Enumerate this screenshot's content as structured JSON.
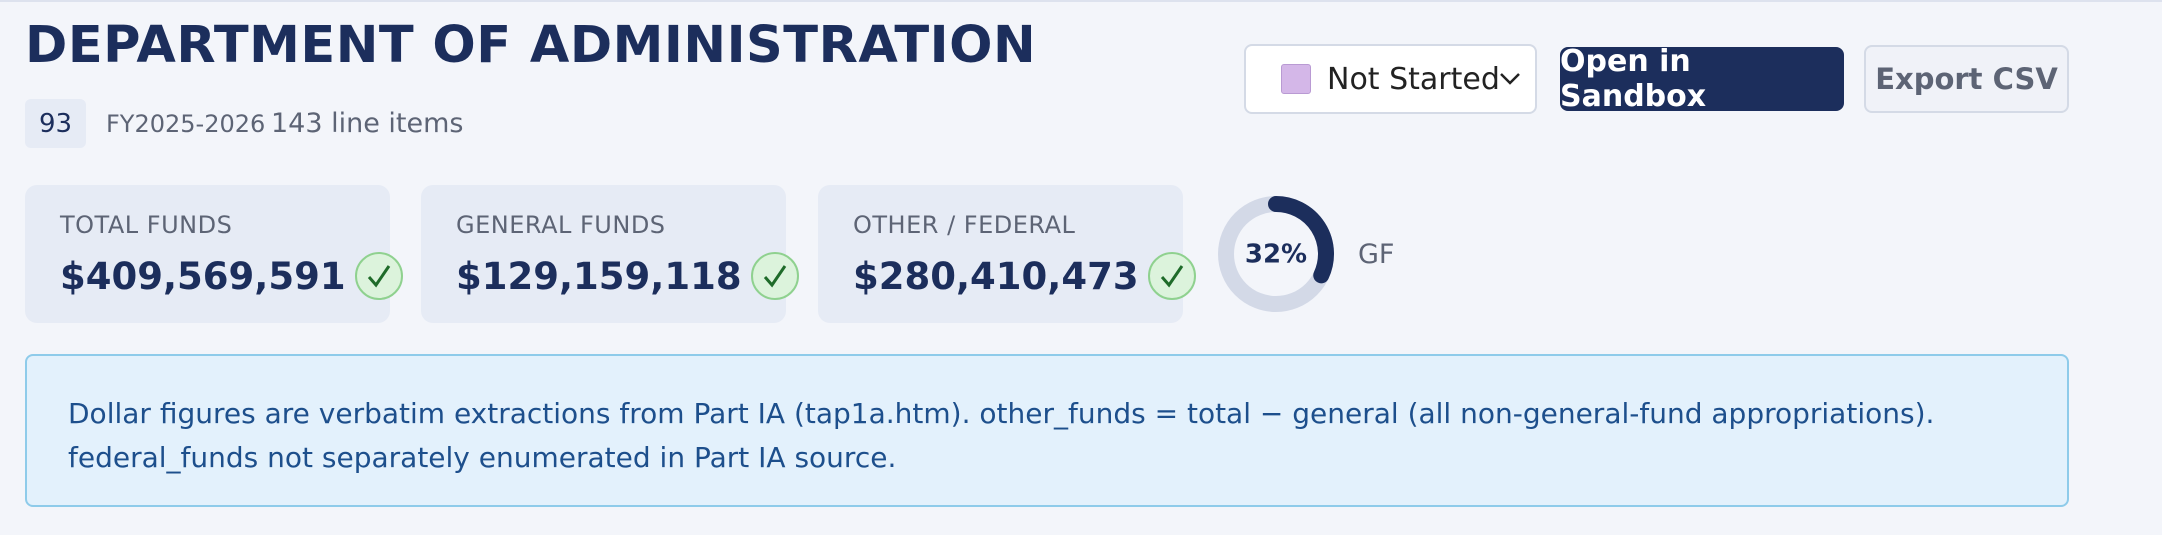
{
  "header": {
    "title": "DEPARTMENT OF ADMINISTRATION",
    "badge": "93",
    "fiscal_year": "FY2025-2026",
    "line_items": "143 line items"
  },
  "controls": {
    "status": "Not Started",
    "primary_button": "Open in Sandbox",
    "secondary_button": "Export CSV"
  },
  "cards": [
    {
      "label": "TOTAL FUNDS",
      "value": "$409,569,591"
    },
    {
      "label": "GENERAL FUNDS",
      "value": "$129,159,118"
    },
    {
      "label": "OTHER / FEDERAL",
      "value": "$280,410,473"
    }
  ],
  "gauge": {
    "value": 32,
    "value_label": "32%",
    "label": "GF"
  },
  "note": "Dollar figures are verbatim extractions from Part IA (tap1a.htm). other_funds = total − general (all non-general-fund appropriations). federal_funds not separately enumerated in Part IA source."
}
